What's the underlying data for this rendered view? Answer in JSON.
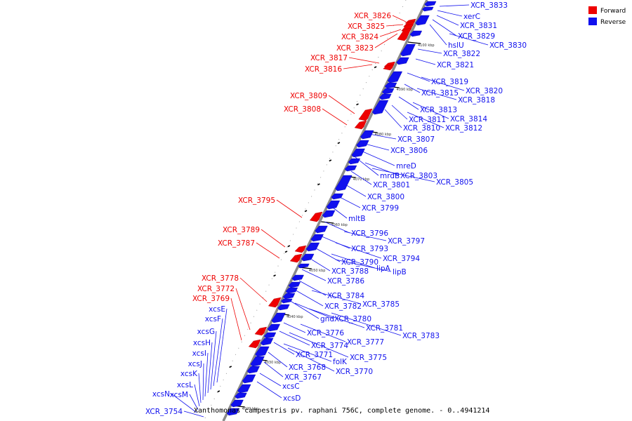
{
  "caption": "Xanthomonas campestris pv. raphani 756C, complete genome. - 0..4941214",
  "legend": {
    "forward": {
      "label": "Forward",
      "color": "#ee0000"
    },
    "reverse": {
      "label": "Reverse",
      "color": "#1010ee"
    }
  },
  "ticks": [
    "4020 kbp",
    "4030 kbp",
    "4040 kbp",
    "4050 kbp",
    "4060 kbp",
    "4070 kbp",
    "4080 kbp",
    "4090 kbp",
    "4100 kbp"
  ],
  "forward_genes": [
    "XCR_3826",
    "XCR_3825",
    "XCR_3824",
    "XCR_3823",
    "XCR_3817",
    "XCR_3816",
    "XCR_3809",
    "XCR_3808",
    "XCR_3795",
    "XCR_3789",
    "XCR_3787",
    "XCR_3778",
    "XCR_3772",
    "XCR_3769"
  ],
  "reverse_genes_left": [
    "xcsE",
    "xcsF",
    "xcsG",
    "xcsH",
    "xcsI",
    "xcsJ",
    "xcsK",
    "xcsL",
    "xcsM",
    "xcsN",
    "XCR_3754"
  ],
  "reverse_genes_right": [
    "XCR_3833",
    "xerC",
    "XCR_3831",
    "XCR_3829",
    "hslU",
    "XCR_3830",
    "XCR_3822",
    "XCR_3821",
    "XCR_3819",
    "XCR_3820",
    "XCR_3815",
    "XCR_3818",
    "XCR_3813",
    "XCR_3811",
    "XCR_3814",
    "XCR_3810",
    "XCR_3812",
    "XCR_3807",
    "XCR_3806",
    "mreD",
    "mrdB",
    "XCR_3803",
    "XCR_3801",
    "XCR_3805",
    "XCR_3800",
    "XCR_3799",
    "mltB",
    "XCR_3796",
    "XCR_3797",
    "XCR_3793",
    "XCR_3794",
    "XCR_3790",
    "lipA",
    "XCR_3788",
    "lipB",
    "XCR_3786",
    "XCR_3784",
    "XCR_3782",
    "XCR_3785",
    "gnd",
    "XCR_3780",
    "XCR_3781",
    "XCR_3776",
    "XCR_3783",
    "XCR_3774",
    "XCR_3777",
    "XCR_3771",
    "XCR_3775",
    "folK",
    "XCR_3768",
    "XCR_3770",
    "XCR_3767",
    "xcsC",
    "xcsD"
  ]
}
